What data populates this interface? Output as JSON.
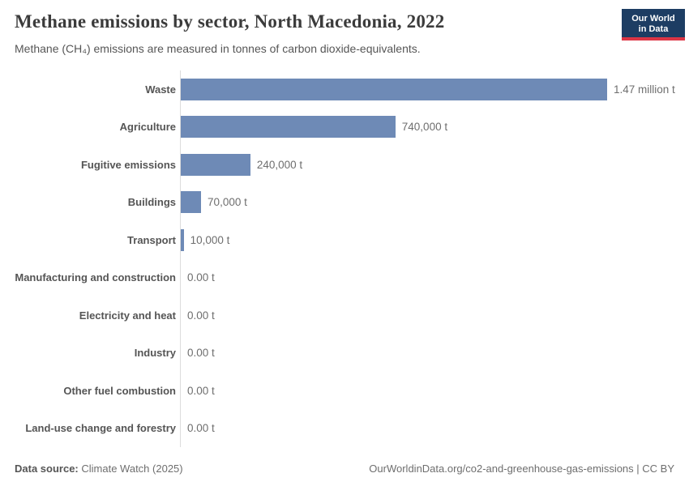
{
  "header": {
    "title": "Methane emissions by sector, North Macedonia, 2022",
    "subtitle": "Methane (CH₄) emissions are measured in tonnes of carbon dioxide-equivalents.",
    "logo": {
      "line1": "Our World",
      "line2": "in Data",
      "bg_color": "#1d3d63",
      "accent_color": "#dc3545"
    }
  },
  "chart_data": {
    "type": "bar",
    "orientation": "horizontal",
    "title": "Methane emissions by sector, North Macedonia, 2022",
    "subtitle": "Methane (CH₄) emissions are measured in tonnes of carbon dioxide-equivalents.",
    "unit": "tonnes of carbon dioxide-equivalents",
    "categories": [
      "Waste",
      "Agriculture",
      "Fugitive emissions",
      "Buildings",
      "Transport",
      "Manufacturing and construction",
      "Electricity and heat",
      "Industry",
      "Other fuel combustion",
      "Land-use change and forestry"
    ],
    "values": [
      1470000,
      740000,
      240000,
      70000,
      10000,
      0,
      0,
      0,
      0,
      0
    ],
    "value_labels": [
      "1.47 million t",
      "740,000 t",
      "240,000 t",
      "70,000 t",
      "10,000 t",
      "0.00 t",
      "0.00 t",
      "0.00 t",
      "0.00 t",
      "0.00 t"
    ],
    "xmax": 1470000,
    "bar_color": "#6e8ab6",
    "axis_color": "#dcdcdc",
    "grid": false,
    "legend": "none"
  },
  "footer": {
    "datasource_label": "Data source:",
    "datasource_value": "Climate Watch (2025)",
    "right": "OurWorldinData.org/co2-and-greenhouse-gas-emissions | CC BY"
  }
}
